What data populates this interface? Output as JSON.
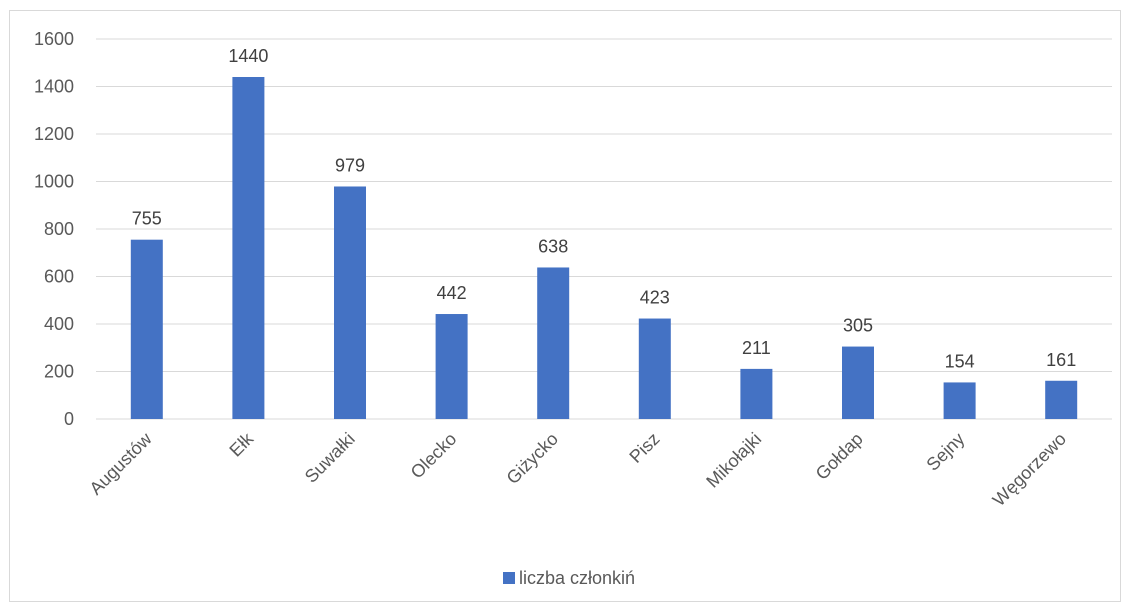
{
  "chart_data": {
    "type": "bar",
    "categories": [
      "Augustów",
      "Ełk",
      "Suwałki",
      "Olecko",
      "Giżycko",
      "Pisz",
      "Mikołajki",
      "Gołdap",
      "Sejny",
      "Węgorzewo"
    ],
    "series": [
      {
        "name": "liczba członkiń",
        "values": [
          755,
          1440,
          979,
          442,
          638,
          423,
          211,
          305,
          154,
          161
        ],
        "color": "#4472c4"
      }
    ],
    "ylim": [
      0,
      1600
    ],
    "yticks": [
      0,
      200,
      400,
      600,
      800,
      1000,
      1200,
      1400,
      1600
    ],
    "grid": true,
    "data_labels": true,
    "legend_position": "bottom",
    "colors": {
      "bar": "#4472c4",
      "grid": "#d9d9d9",
      "axis_text": "#595959"
    }
  }
}
